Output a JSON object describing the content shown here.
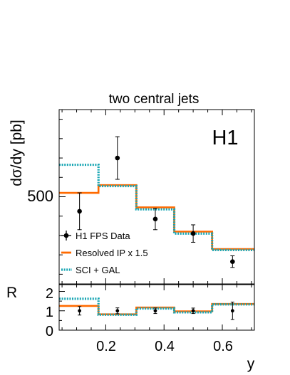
{
  "chart_data": [
    {
      "type": "line",
      "title": "two central jets",
      "experiment_label": "H1",
      "xlabel": "y",
      "ylabel": "dσ/dy [pb]",
      "xlim": [
        0.04,
        0.71
      ],
      "ylim": [
        50,
        950
      ],
      "x_ticks": [
        0.2,
        0.4,
        0.6
      ],
      "x_tick_labels": [
        "0.2",
        "0.4",
        "0.6"
      ],
      "y_ticks": [
        500
      ],
      "y_tick_labels": [
        "500"
      ],
      "bin_edges": [
        0.04,
        0.175,
        0.305,
        0.435,
        0.565,
        0.71
      ],
      "legend_position": "bottom-left",
      "series": [
        {
          "name": "H1 FPS Data",
          "kind": "points",
          "color": "#000000",
          "x": [
            0.11,
            0.24,
            0.37,
            0.5,
            0.635
          ],
          "y": [
            425,
            700,
            385,
            310,
            165
          ],
          "err_low": [
            95,
            110,
            55,
            45,
            30
          ],
          "err_high": [
            95,
            110,
            55,
            45,
            30
          ]
        },
        {
          "name": "Resolved IP x 1.5",
          "kind": "step",
          "color": "#ff6a00",
          "values": [
            520,
            560,
            445,
            320,
            230
          ]
        },
        {
          "name": "SCI + GAL",
          "kind": "step",
          "color": "#19a6b4",
          "values": [
            665,
            555,
            435,
            310,
            225
          ]
        }
      ]
    },
    {
      "type": "line",
      "xlabel": "y",
      "ylabel": "R",
      "xlim": [
        0.04,
        0.71
      ],
      "ylim": [
        0,
        2.35
      ],
      "y_ticks": [
        0,
        1,
        2
      ],
      "y_tick_labels": [
        "0",
        "1",
        "2"
      ],
      "bin_edges": [
        0.04,
        0.175,
        0.305,
        0.435,
        0.565,
        0.71
      ],
      "series": [
        {
          "name": "H1 FPS Data",
          "kind": "points",
          "color": "#000000",
          "x": [
            0.11,
            0.24,
            0.37,
            0.5,
            0.635
          ],
          "y": [
            1.0,
            1.0,
            1.0,
            1.0,
            1.0
          ],
          "err_low": [
            0.22,
            0.15,
            0.14,
            0.14,
            0.45
          ],
          "err_high": [
            0.22,
            0.15,
            0.14,
            0.14,
            0.45
          ]
        },
        {
          "name": "Resolved IP x 1.5",
          "kind": "step",
          "color": "#ff6a00",
          "values": [
            1.25,
            0.82,
            1.17,
            0.97,
            1.35
          ]
        },
        {
          "name": "SCI + GAL",
          "kind": "step",
          "color": "#19a6b4",
          "values": [
            1.62,
            0.8,
            1.12,
            0.92,
            1.33
          ]
        }
      ]
    }
  ]
}
